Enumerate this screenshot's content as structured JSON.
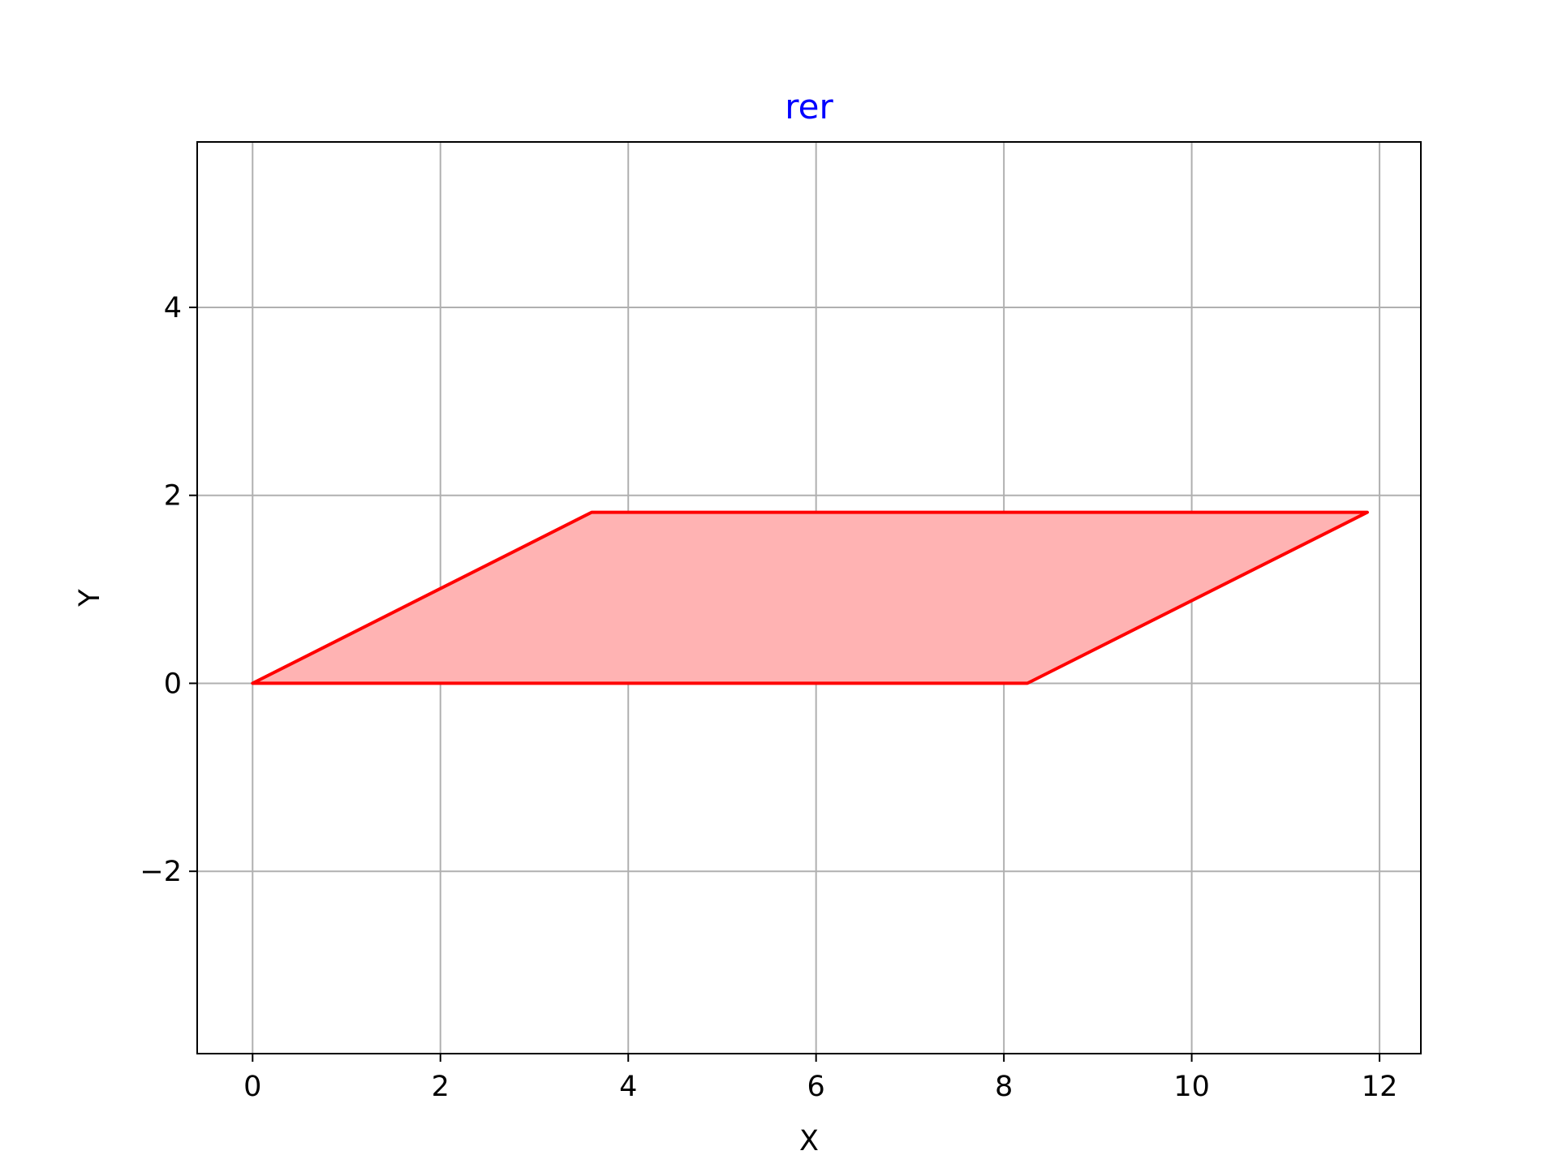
{
  "chart_data": {
    "type": "area",
    "title": "rer",
    "title_color": "#0000ff",
    "xlabel": "X",
    "ylabel": "Y",
    "xlim": [
      -0.59,
      12.44
    ],
    "ylim": [
      -3.94,
      5.76
    ],
    "xticks": [
      0,
      2,
      4,
      6,
      8,
      10,
      12
    ],
    "yticks": [
      -2,
      0,
      2,
      4
    ],
    "xtick_labels": [
      "0",
      "2",
      "4",
      "6",
      "8",
      "10",
      "12"
    ],
    "ytick_labels": [
      "−2",
      "0",
      "2",
      "4"
    ],
    "grid": true,
    "series": [
      {
        "vertices": [
          [
            0,
            0
          ],
          [
            8.25,
            0
          ],
          [
            11.87,
            1.82
          ],
          [
            3.61,
            1.82
          ]
        ],
        "closed": true,
        "fill_color": "#ffb3b3",
        "edge_color": "#ff0000"
      }
    ]
  }
}
